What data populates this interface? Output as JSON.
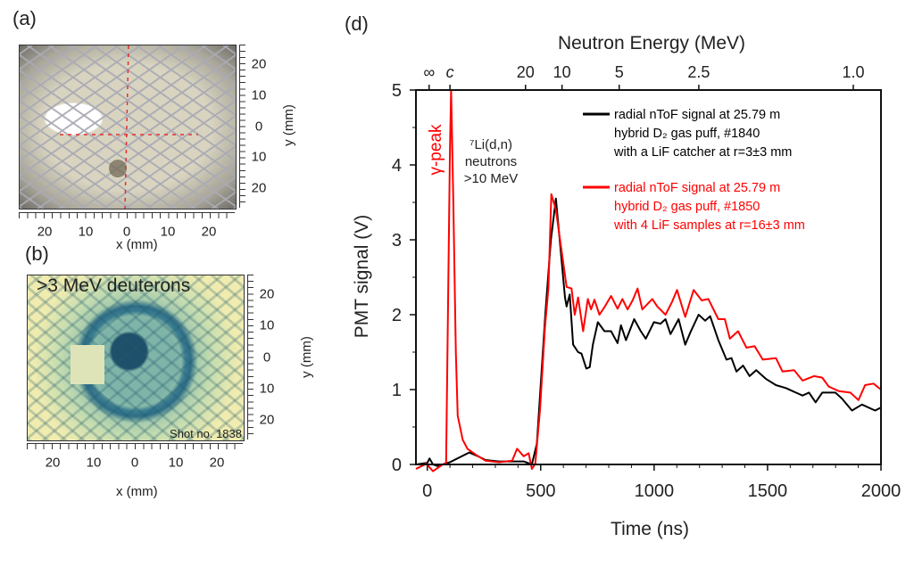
{
  "panels": {
    "a": {
      "label": "(a)",
      "x_label": "x (mm)",
      "y_label": "y (mm)",
      "x_ticks": [
        "20",
        "10",
        "0",
        "10",
        "20"
      ],
      "y_ticks": [
        "20",
        "10",
        "0",
        "10",
        "20"
      ]
    },
    "b": {
      "label": "(b)",
      "title": ">3 MeV deuterons",
      "shot": "Shot no. 1838",
      "x_label": "x (mm)",
      "y_label": "y (mm)",
      "x_ticks": [
        "20",
        "10",
        "0",
        "10",
        "20"
      ],
      "y_ticks": [
        "20",
        "10",
        "0",
        "10",
        "20"
      ]
    },
    "d": {
      "label": "(d)"
    }
  },
  "chart_data": {
    "type": "line",
    "xlabel": "Time (ns)",
    "ylabel": "PMT signal (V)",
    "top_xlabel": "Neutron Energy (MeV)",
    "xlim": [
      -50,
      2000
    ],
    "ylim": [
      0,
      5
    ],
    "x_ticks": [
      0,
      500,
      1000,
      1500,
      2000
    ],
    "y_ticks": [
      0,
      1,
      2,
      3,
      4,
      5
    ],
    "top_ticks": [
      {
        "label": "∞",
        "t": 8
      },
      {
        "label": "c",
        "t": 100
      },
      {
        "label": "20",
        "t": 433
      },
      {
        "label": "10",
        "t": 594
      },
      {
        "label": "5",
        "t": 846
      },
      {
        "label": "2.5",
        "t": 1197
      },
      {
        "label": "1.0",
        "t": 1878
      }
    ],
    "grid": false,
    "legend_position": "top-right",
    "annotations": {
      "gamma_peak": "γ-peak",
      "li_line1": "⁷Li(d,n)",
      "li_line2": "neutrons",
      "li_line3": ">10 MeV"
    },
    "series": [
      {
        "name": "radial nToF signal at 25.79 m / hybrid D₂ gas puff, #1840 / with a LiF catcher at r=3±3  mm",
        "legend": [
          "radial nToF signal at 25.79 m",
          "hybrid D₂ gas puff, #1840",
          "with a LiF catcher at r=3±3  mm"
        ],
        "color": "#000000",
        "x": [
          -50,
          0,
          10,
          25,
          45,
          100,
          185,
          230,
          257,
          316,
          374,
          425,
          461,
          483,
          520,
          545,
          567,
          607,
          614,
          628,
          643,
          665,
          680,
          701,
          716,
          730,
          752,
          781,
          810,
          839,
          854,
          876,
          912,
          941,
          963,
          999,
          1028,
          1050,
          1072,
          1108,
          1137,
          1159,
          1196,
          1225,
          1247,
          1283,
          1319,
          1341,
          1363,
          1392,
          1421,
          1450,
          1494,
          1537,
          1581,
          1625,
          1654,
          1683,
          1712,
          1741,
          1799,
          1828,
          1872,
          1916,
          1974,
          2000
        ],
        "y": [
          0,
          0.02,
          0.08,
          0.0,
          -0.02,
          0.03,
          0.16,
          0.1,
          0.06,
          0.04,
          0.04,
          0.04,
          0.0,
          0.28,
          2.0,
          3.0,
          3.55,
          2.23,
          2.11,
          2.27,
          1.6,
          1.5,
          1.48,
          1.28,
          1.3,
          1.6,
          1.9,
          1.78,
          1.78,
          1.62,
          1.86,
          1.66,
          1.94,
          1.78,
          1.68,
          1.9,
          1.88,
          1.94,
          1.74,
          1.94,
          1.6,
          1.76,
          2.0,
          1.92,
          1.98,
          1.66,
          1.4,
          1.42,
          1.24,
          1.32,
          1.18,
          1.26,
          1.14,
          1.06,
          1.02,
          0.96,
          0.92,
          0.96,
          0.83,
          0.96,
          0.96,
          0.88,
          0.72,
          0.8,
          0.72,
          0.76
        ]
      },
      {
        "name": "radial nToF signal at 25.79 m / hybrid D₂ gas puff, #1850 / with 4 LiF samples at r=16±3 mm",
        "legend": [
          "radial nToF signal at 25.79 m",
          "hybrid D₂ gas puff, #1850",
          "with 4 LiF samples at r=16±3 mm"
        ],
        "color": "#ff0000",
        "x": [
          -50,
          -4,
          25,
          68,
          83,
          100,
          105,
          115,
          126,
          134,
          156,
          177,
          214,
          257,
          316,
          374,
          396,
          425,
          447,
          461,
          476,
          497,
          519,
          534,
          547,
          567,
          614,
          636,
          650,
          665,
          687,
          708,
          722,
          737,
          759,
          781,
          810,
          839,
          860,
          883,
          905,
          927,
          948,
          992,
          1014,
          1050,
          1079,
          1101,
          1137,
          1174,
          1210,
          1239,
          1283,
          1312,
          1334,
          1370,
          1407,
          1443,
          1479,
          1537,
          1566,
          1617,
          1654,
          1705,
          1741,
          1770,
          1814,
          1865,
          1901,
          1930,
          1967,
          2000
        ],
        "y": [
          -0.06,
          0.01,
          -0.09,
          0.0,
          0.02,
          4.2,
          5.0,
          3.5,
          1.5,
          0.65,
          0.33,
          0.21,
          0.13,
          0.05,
          0.03,
          0.05,
          0.21,
          0.11,
          0.15,
          -0.06,
          0.01,
          0.73,
          1.84,
          2.35,
          3.61,
          3.4,
          2.37,
          2.35,
          2.0,
          2.23,
          1.78,
          2.21,
          2.07,
          2.2,
          2.0,
          2.1,
          2.25,
          2.08,
          2.21,
          2.07,
          2.19,
          2.35,
          2.07,
          2.21,
          2.11,
          2.0,
          2.17,
          2.33,
          1.97,
          2.33,
          2.19,
          2.21,
          1.94,
          1.94,
          1.68,
          1.78,
          1.56,
          1.58,
          1.4,
          1.42,
          1.24,
          1.26,
          1.12,
          1.18,
          1.16,
          1.04,
          0.98,
          0.96,
          0.86,
          1.06,
          1.08,
          1.0
        ]
      }
    ]
  }
}
